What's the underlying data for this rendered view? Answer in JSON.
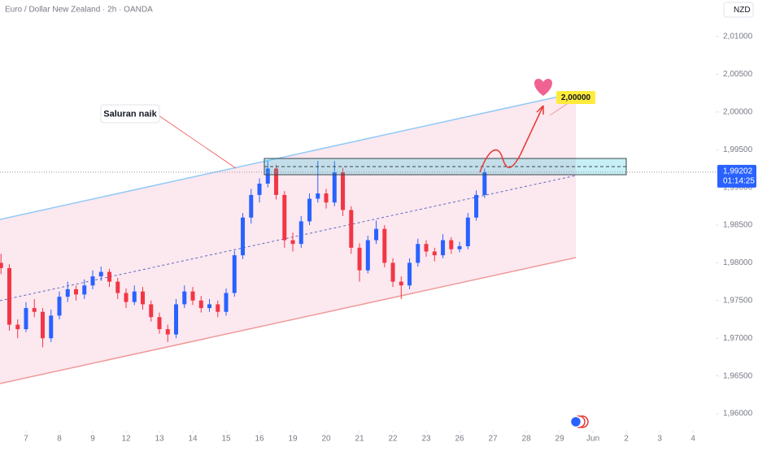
{
  "chart_data": {
    "type": "candlestick",
    "title": "Euro / Dollar New Zealand · 2h · OANDA",
    "currency": "NZD",
    "up_color": "#2962ff",
    "down_color": "#f23645",
    "x": [
      -0.75,
      -0.5,
      -0.25,
      0,
      0.25,
      0.5,
      0.75,
      1,
      1.25,
      1.5,
      1.75,
      2,
      2.25,
      2.5,
      2.75,
      3,
      3.25,
      3.5,
      3.75,
      4,
      4.25,
      4.5,
      4.75,
      5,
      5.25,
      5.5,
      5.75,
      6,
      6.25,
      6.5,
      6.75,
      7,
      7.25,
      7.5,
      7.75,
      8,
      8.25,
      8.5,
      8.75,
      9,
      9.25,
      9.5,
      9.75,
      10,
      10.25,
      10.5,
      10.75,
      11,
      11.25,
      11.5,
      11.75,
      12,
      12.25,
      12.5,
      12.75,
      13,
      13.25,
      13.5,
      13.75
    ],
    "ohlc": [
      [
        1.98,
        1.9812,
        1.9785,
        1.9793
      ],
      [
        1.9793,
        1.9798,
        1.971,
        1.9718
      ],
      [
        1.9718,
        1.9725,
        1.97,
        1.9712
      ],
      [
        1.9712,
        1.9748,
        1.9708,
        1.974
      ],
      [
        1.974,
        1.9752,
        1.9728,
        1.9735
      ],
      [
        1.9735,
        1.974,
        1.9688,
        1.97
      ],
      [
        1.97,
        1.9738,
        1.9695,
        1.973
      ],
      [
        1.973,
        1.9762,
        1.9725,
        1.9755
      ],
      [
        1.9755,
        1.9775,
        1.9748,
        1.9765
      ],
      [
        1.9765,
        1.977,
        1.975,
        1.9758
      ],
      [
        1.9758,
        1.9778,
        1.9752,
        1.977
      ],
      [
        1.977,
        1.979,
        1.9765,
        1.9782
      ],
      [
        1.9782,
        1.9795,
        1.9776,
        1.9788
      ],
      [
        1.9788,
        1.9792,
        1.9768,
        1.9775
      ],
      [
        1.9775,
        1.978,
        1.9752,
        1.976
      ],
      [
        1.976,
        1.9766,
        1.974,
        1.9748
      ],
      [
        1.9748,
        1.977,
        1.9744,
        1.9762
      ],
      [
        1.9762,
        1.9768,
        1.9738,
        1.9745
      ],
      [
        1.9745,
        1.975,
        1.9722,
        1.9728
      ],
      [
        1.9728,
        1.9734,
        1.9706,
        1.9712
      ],
      [
        1.9712,
        1.9718,
        1.9695,
        1.9705
      ],
      [
        1.9705,
        1.9752,
        1.97,
        1.9745
      ],
      [
        1.9745,
        1.977,
        1.974,
        1.9762
      ],
      [
        1.9762,
        1.9768,
        1.9744,
        1.975
      ],
      [
        1.975,
        1.9756,
        1.9734,
        1.974
      ],
      [
        1.974,
        1.9752,
        1.9735,
        1.9745
      ],
      [
        1.9745,
        1.975,
        1.9728,
        1.9735
      ],
      [
        1.9735,
        1.9766,
        1.973,
        1.976
      ],
      [
        1.976,
        1.9816,
        1.9755,
        1.981
      ],
      [
        1.981,
        1.9866,
        1.9805,
        1.986
      ],
      [
        1.986,
        1.9898,
        1.9852,
        1.989
      ],
      [
        1.989,
        1.9912,
        1.988,
        1.9905
      ],
      [
        1.9905,
        1.9935,
        1.99,
        1.9925
      ],
      [
        1.9925,
        1.993,
        1.9884,
        1.989
      ],
      [
        1.989,
        1.9895,
        1.982,
        1.983
      ],
      [
        1.983,
        1.984,
        1.9815,
        1.9825
      ],
      [
        1.9825,
        1.9862,
        1.982,
        1.9855
      ],
      [
        1.9855,
        1.9892,
        1.985,
        1.9885
      ],
      [
        1.9885,
        1.9935,
        1.988,
        1.9892
      ],
      [
        1.9892,
        1.9898,
        1.9872,
        1.988
      ],
      [
        1.988,
        1.9935,
        1.9875,
        1.992
      ],
      [
        1.992,
        1.9926,
        1.9862,
        1.987
      ],
      [
        1.987,
        1.9875,
        1.9812,
        1.982
      ],
      [
        1.982,
        1.9826,
        1.9775,
        1.979
      ],
      [
        1.979,
        1.9836,
        1.9786,
        1.983
      ],
      [
        1.983,
        1.9856,
        1.9825,
        1.9845
      ],
      [
        1.9845,
        1.985,
        1.9794,
        1.98
      ],
      [
        1.98,
        1.9806,
        1.9768,
        1.9775
      ],
      [
        1.9775,
        1.9782,
        1.9752,
        1.977
      ],
      [
        1.977,
        1.9806,
        1.9765,
        1.98
      ],
      [
        1.98,
        1.9832,
        1.9795,
        1.9825
      ],
      [
        1.9825,
        1.983,
        1.9808,
        1.9815
      ],
      [
        1.9815,
        1.982,
        1.9802,
        1.981
      ],
      [
        1.981,
        1.9838,
        1.9806,
        1.983
      ],
      [
        1.983,
        1.9834,
        1.9812,
        1.9818
      ],
      [
        1.9818,
        1.9828,
        1.9814,
        1.9822
      ],
      [
        1.9822,
        1.9866,
        1.9818,
        1.986
      ],
      [
        1.986,
        1.9896,
        1.9856,
        1.989
      ],
      [
        1.989,
        1.9925,
        1.9886,
        1.992
      ]
    ],
    "xlim": [
      -0.78,
      20.68
    ],
    "xticks": [
      {
        "value": 0,
        "label": "7"
      },
      {
        "value": 1,
        "label": "8"
      },
      {
        "value": 2,
        "label": "9"
      },
      {
        "value": 3,
        "label": "12"
      },
      {
        "value": 4,
        "label": "13"
      },
      {
        "value": 5,
        "label": "14"
      },
      {
        "value": 6,
        "label": "15"
      },
      {
        "value": 7,
        "label": "16"
      },
      {
        "value": 8,
        "label": "19"
      },
      {
        "value": 9,
        "label": "20"
      },
      {
        "value": 10,
        "label": "21"
      },
      {
        "value": 11,
        "label": "22"
      },
      {
        "value": 12,
        "label": "23"
      },
      {
        "value": 13,
        "label": "26"
      },
      {
        "value": 14,
        "label": "27"
      },
      {
        "value": 15,
        "label": "28"
      },
      {
        "value": 16,
        "label": "29"
      },
      {
        "value": 17,
        "label": "Jun"
      },
      {
        "value": 18,
        "label": "2"
      },
      {
        "value": 19,
        "label": "3"
      },
      {
        "value": 20,
        "label": "4"
      }
    ],
    "ylim": [
      1.95774,
      2.01485
    ],
    "yticks": [
      {
        "value": 1.96,
        "label": "1,96000"
      },
      {
        "value": 1.965,
        "label": "1,96500"
      },
      {
        "value": 1.97,
        "label": "1,97000"
      },
      {
        "value": 1.975,
        "label": "1,97500"
      },
      {
        "value": 1.98,
        "label": "1,98000"
      },
      {
        "value": 1.985,
        "label": "1,98500"
      },
      {
        "value": 1.99,
        "label": "1,99000"
      },
      {
        "value": 1.995,
        "label": "1,99500"
      },
      {
        "value": 2.0,
        "label": "2,00000"
      },
      {
        "value": 2.005,
        "label": "2,00500"
      },
      {
        "value": 2.01,
        "label": "2,01000"
      }
    ],
    "last_price": {
      "value": 1.99202,
      "label": "1,99202"
    },
    "countdown": "01:14:25",
    "annotations": {
      "channel": "Saluran naik",
      "target": "2,00000"
    }
  }
}
